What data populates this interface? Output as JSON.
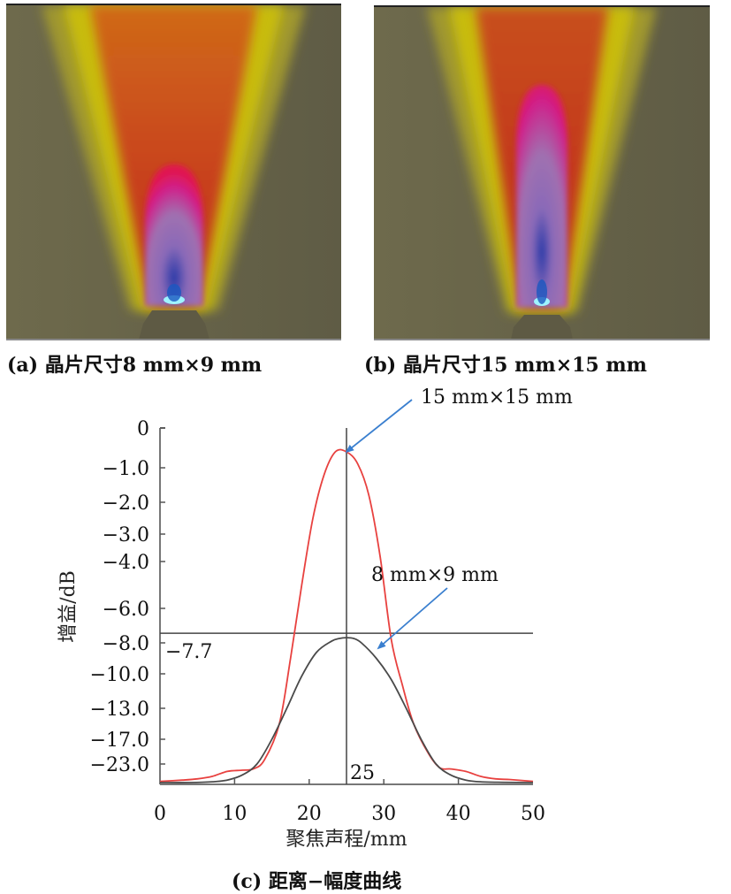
{
  "panels": {
    "a": {
      "caption": "(a) 晶片尺寸8 mm×9 mm",
      "description": "sound field simulation, crystal size 8 mm × 9 mm"
    },
    "b": {
      "caption": "(b) 晶片尺寸15 mm×15 mm",
      "description": "sound field simulation, crystal size 15 mm × 15 mm"
    },
    "c": {
      "caption": "(c) 距离−幅度曲线"
    }
  },
  "colors": {
    "series_15x15": "#e8413f",
    "series_8x9": "#4a4a4a",
    "arrow": "#3a7fcf",
    "axis": "#777777",
    "ref_line": "#444444"
  },
  "chart_data": {
    "type": "line",
    "title": "",
    "xlabel": "聚焦声程/mm",
    "ylabel": "增益/dB",
    "xlim": [
      0,
      50
    ],
    "x_ticks": [
      0,
      10,
      20,
      30,
      40,
      50
    ],
    "x_tick_labels": [
      "0",
      "10",
      "20",
      "30",
      "40",
      "50"
    ],
    "y_ticks": [
      0,
      -1.0,
      -2.0,
      -3.0,
      -4.0,
      -6.0,
      -8.0,
      -10.0,
      -13.0,
      -17.0,
      -23.0
    ],
    "y_tick_labels": [
      "0",
      "−1.0",
      "−2.0",
      "−3.0",
      "−4.0",
      "−6.0",
      "−8.0",
      "−10.0",
      "−13.0",
      "−17.0",
      "−23.0"
    ],
    "y_scale": "non-linear (ticks unevenly spaced)",
    "grid": false,
    "reference_lines": [
      {
        "orientation": "horizontal",
        "value": -7.7,
        "label": "−7.7"
      },
      {
        "orientation": "vertical",
        "value": 25,
        "label": "25"
      }
    ],
    "annotations": [
      {
        "text": "15 mm×15 mm",
        "points_to": "peak of 15 mm × 15 mm curve"
      },
      {
        "text": "8 mm×9 mm",
        "points_to": "8 mm × 9 mm curve near peak"
      }
    ],
    "series": [
      {
        "name": "15 mm×15 mm",
        "color": "#e8413f",
        "x": [
          0,
          3,
          5,
          7,
          9,
          11,
          12.5,
          14,
          16,
          17.5,
          19,
          20.5,
          22,
          23.5,
          25,
          26.5,
          28,
          29.5,
          31,
          32.5,
          34,
          36,
          37.5,
          39,
          41,
          43,
          45,
          47,
          50
        ],
        "y": [
          -30,
          -29.5,
          -29,
          -28,
          -26,
          -25.5,
          -25,
          -22,
          -15,
          -9,
          -5,
          -2.5,
          -1.2,
          -0.6,
          -0.6,
          -0.9,
          -1.8,
          -3.8,
          -7.8,
          -11,
          -15,
          -20.5,
          -24.5,
          -25,
          -26,
          -28,
          -29,
          -29.3,
          -30
        ]
      },
      {
        "name": "8 mm×9 mm",
        "color": "#4a4a4a",
        "x": [
          0,
          4,
          7,
          9,
          11,
          13,
          15,
          17,
          19,
          21,
          23,
          24,
          25,
          26,
          27,
          29,
          31,
          33,
          35,
          37,
          39,
          41,
          43,
          46,
          50
        ],
        "y": [
          -30.5,
          -30.5,
          -30.2,
          -29.5,
          -27.5,
          -23,
          -17,
          -13,
          -10.2,
          -8.6,
          -7.9,
          -7.75,
          -7.7,
          -7.75,
          -8,
          -9,
          -10.5,
          -13,
          -17,
          -23,
          -27.5,
          -29.5,
          -30.2,
          -30.4,
          -30.5
        ]
      }
    ]
  }
}
